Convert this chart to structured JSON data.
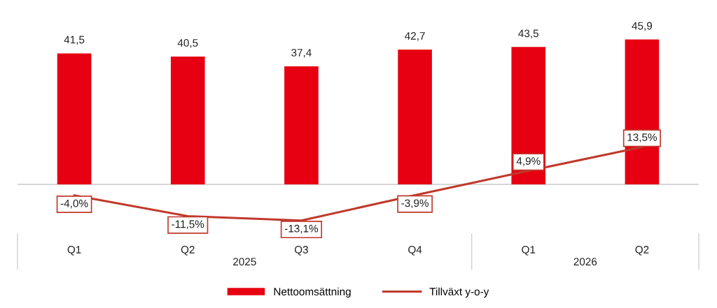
{
  "chart_data": {
    "type": "bar",
    "categories": [
      "Q1",
      "Q2",
      "Q3",
      "Q4",
      "Q1",
      "Q2"
    ],
    "series": [
      {
        "name": "Nettoomsättning",
        "color": "#e60012",
        "values": [
          41.5,
          40.5,
          37.4,
          42.7,
          43.5,
          45.9
        ],
        "value_labels": [
          "41,5",
          "40,5",
          "37,4",
          "42,7",
          "43,5",
          "45,9"
        ]
      },
      {
        "name": "Tillväxt y-o-y",
        "type": "line",
        "axis": "y2",
        "color": "#c0392b",
        "values": [
          -4.0,
          -11.5,
          -13.1,
          -3.9,
          4.9,
          13.5
        ],
        "value_labels": [
          "-4,0%",
          "-11,5%",
          "-13,1%",
          "-3,9%",
          "4,9%",
          "13,5%"
        ]
      }
    ],
    "annotations": [
      "2025",
      "2026"
    ],
    "tick_labels": "x",
    "legend": "bottom",
    "grid": false,
    "marker": "none",
    "line_style": "solid"
  }
}
